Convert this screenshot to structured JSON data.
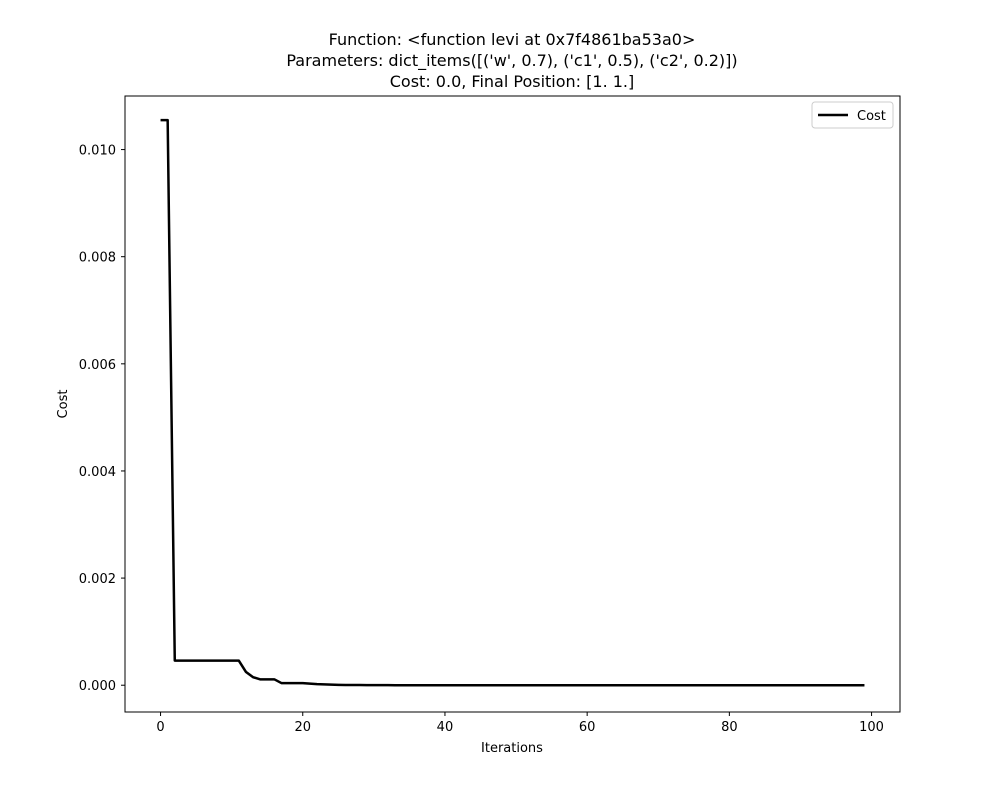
{
  "chart_data": {
    "type": "line",
    "title_lines": [
      "Function: <function levi at 0x7f4861ba53a0>",
      "Parameters: dict_items([('w', 0.7), ('c1', 0.5), ('c2', 0.2)])",
      "Cost: 0.0, Final Position: [1. 1.]"
    ],
    "xlabel": "Iterations",
    "ylabel": "Cost",
    "xlim": [
      -5,
      104
    ],
    "ylim": [
      -0.0005,
      0.011
    ],
    "xticks": [
      0,
      20,
      40,
      60,
      80,
      100
    ],
    "xtick_labels": [
      "0",
      "20",
      "40",
      "60",
      "80",
      "100"
    ],
    "yticks": [
      0,
      0.002,
      0.004,
      0.006,
      0.008,
      0.01
    ],
    "ytick_labels": [
      "0.000",
      "0.002",
      "0.004",
      "0.006",
      "0.008",
      "0.010"
    ],
    "grid": false,
    "legend_position": "top-right",
    "series": [
      {
        "name": "Cost",
        "color": "#000000",
        "x": [
          0,
          1,
          2,
          3,
          4,
          5,
          6,
          7,
          8,
          9,
          10,
          11,
          12,
          13,
          14,
          15,
          16,
          17,
          18,
          19,
          20,
          21,
          22,
          23,
          24,
          25,
          26,
          27,
          28,
          29,
          30,
          31,
          32,
          33,
          34,
          35,
          36,
          37,
          38,
          39,
          40,
          41,
          42,
          43,
          44,
          45,
          46,
          47,
          48,
          49,
          50,
          51,
          52,
          53,
          54,
          55,
          56,
          57,
          58,
          59,
          60,
          61,
          62,
          63,
          64,
          65,
          66,
          67,
          68,
          69,
          70,
          71,
          72,
          73,
          74,
          75,
          76,
          77,
          78,
          79,
          80,
          81,
          82,
          83,
          84,
          85,
          86,
          87,
          88,
          89,
          90,
          91,
          92,
          93,
          94,
          95,
          96,
          97,
          98,
          99
        ],
        "y": [
          0.01055,
          0.01055,
          0.00046,
          0.00046,
          0.00046,
          0.00046,
          0.00046,
          0.00046,
          0.00046,
          0.00046,
          0.00046,
          0.00046,
          0.00025,
          0.00015,
          0.00011,
          0.00011,
          0.00011,
          4e-05,
          4e-05,
          4e-05,
          4e-05,
          3e-05,
          2e-05,
          1.5e-05,
          1e-05,
          7e-06,
          5e-06,
          4e-06,
          3e-06,
          2e-06,
          1.5e-06,
          1e-06,
          8e-07,
          6e-07,
          5e-07,
          4e-07,
          3e-07,
          2e-07,
          2e-07,
          1e-07,
          1e-07,
          0,
          0,
          0,
          0,
          0,
          0,
          0,
          0,
          0,
          0,
          0,
          0,
          0,
          0,
          0,
          0,
          0,
          0,
          0,
          0,
          0,
          0,
          0,
          0,
          0,
          0,
          0,
          0,
          0,
          0,
          0,
          0,
          0,
          0,
          0,
          0,
          0,
          0,
          0,
          0,
          0,
          0,
          0,
          0,
          0,
          0,
          0,
          0,
          0,
          0,
          0,
          0,
          0,
          0,
          0,
          0,
          0,
          0,
          0
        ]
      }
    ]
  }
}
